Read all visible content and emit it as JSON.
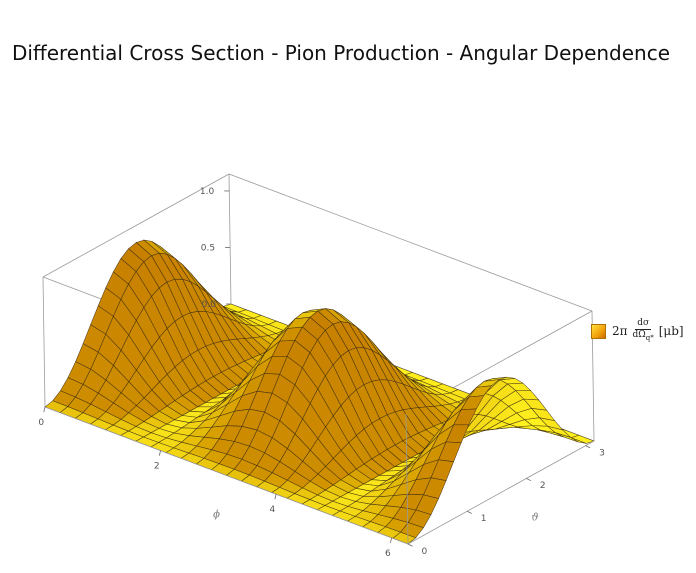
{
  "title": "Differential Cross Section - Pion Production - Angular Dependence",
  "colors": {
    "surface_light": "#fff036",
    "surface_mid": "#f4a10f",
    "surface_dark": "#b35f00",
    "mesh": "#3a2a10",
    "box": "#9a9a9a"
  },
  "chart_data": {
    "type": "surface3d",
    "title": "Differential Cross Section - Pion Production - Angular Dependence",
    "xlabel": "ϕ",
    "ylabel": "ϑ",
    "zlabel": "",
    "xlim": [
      0,
      6.283
    ],
    "ylim": [
      0,
      3.1416
    ],
    "zlim": [
      0,
      1.15
    ],
    "x_ticks": [
      "0",
      "2",
      "4",
      "6"
    ],
    "y_ticks": [
      "0",
      "1",
      "2",
      "3"
    ],
    "z_ticks": [
      "0.0",
      "0.5",
      "1.0"
    ],
    "grid": false,
    "legend_placement": "right",
    "legend": {
      "label": "2π",
      "num": "dσ",
      "den": "dΩ",
      "den_sub": "q*",
      "unit": "[μb]"
    },
    "function": "z = sin(θ)^2 · cos(ϕ)^2",
    "surface_values": {
      "phi": [
        0,
        1.5708,
        3.1416,
        4.7124,
        6.2832
      ],
      "theta": [
        0,
        0.7854,
        1.5708,
        2.3562,
        3.1416
      ],
      "z": [
        [
          0.0,
          0.5,
          1.0,
          0.5,
          0.0
        ],
        [
          0.0,
          0.0,
          0.0,
          0.0,
          0.0
        ],
        [
          0.0,
          0.5,
          1.0,
          0.5,
          0.0
        ],
        [
          0.0,
          0.0,
          0.0,
          0.0,
          0.0
        ],
        [
          0.0,
          0.5,
          1.0,
          0.5,
          0.0
        ]
      ]
    },
    "peaks": [
      {
        "phi": 0,
        "theta": 1.5708,
        "z": 1.0
      },
      {
        "phi": 3.1416,
        "theta": 1.5708,
        "z": 1.0
      },
      {
        "phi": 6.2832,
        "theta": 1.5708,
        "z": 1.0
      }
    ]
  }
}
